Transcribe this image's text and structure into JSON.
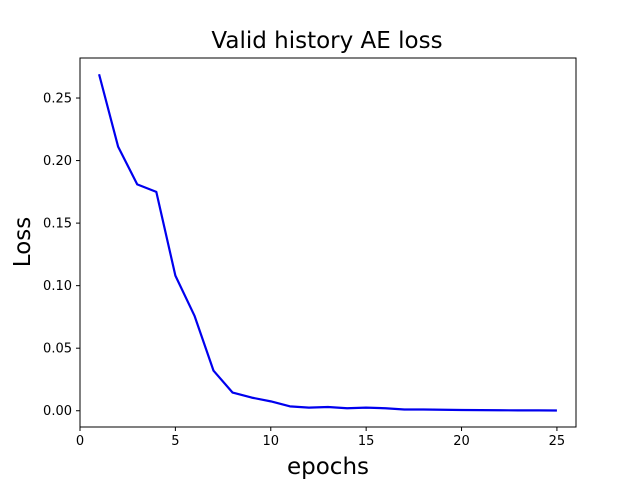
{
  "chart_data": {
    "type": "line",
    "title": "Valid history AE loss",
    "xlabel": "epochs",
    "ylabel": "Loss",
    "xlim": [
      0,
      26
    ],
    "ylim": [
      -0.013,
      0.282
    ],
    "xticks": [
      0,
      5,
      10,
      15,
      20,
      25
    ],
    "yticks": [
      0.0,
      0.05,
      0.1,
      0.15,
      0.2,
      0.25
    ],
    "xtick_labels": [
      "0",
      "5",
      "10",
      "15",
      "20",
      "25"
    ],
    "ytick_labels": [
      "0.00",
      "0.05",
      "0.10",
      "0.15",
      "0.20",
      "0.25"
    ],
    "grid": false,
    "legend": false,
    "series": [
      {
        "color": "#0000ee",
        "x": [
          1,
          2,
          3,
          4,
          5,
          6,
          7,
          8,
          9,
          10,
          11,
          12,
          13,
          14,
          15,
          16,
          17,
          18,
          19,
          20,
          21,
          22,
          23,
          24,
          25
        ],
        "y": [
          0.269,
          0.211,
          0.181,
          0.175,
          0.108,
          0.076,
          0.032,
          0.0145,
          0.0105,
          0.0075,
          0.0035,
          0.0025,
          0.003,
          0.002,
          0.0025,
          0.002,
          0.001,
          0.001,
          0.0008,
          0.0006,
          0.0005,
          0.0004,
          0.0003,
          0.0003,
          0.0002
        ]
      }
    ]
  }
}
